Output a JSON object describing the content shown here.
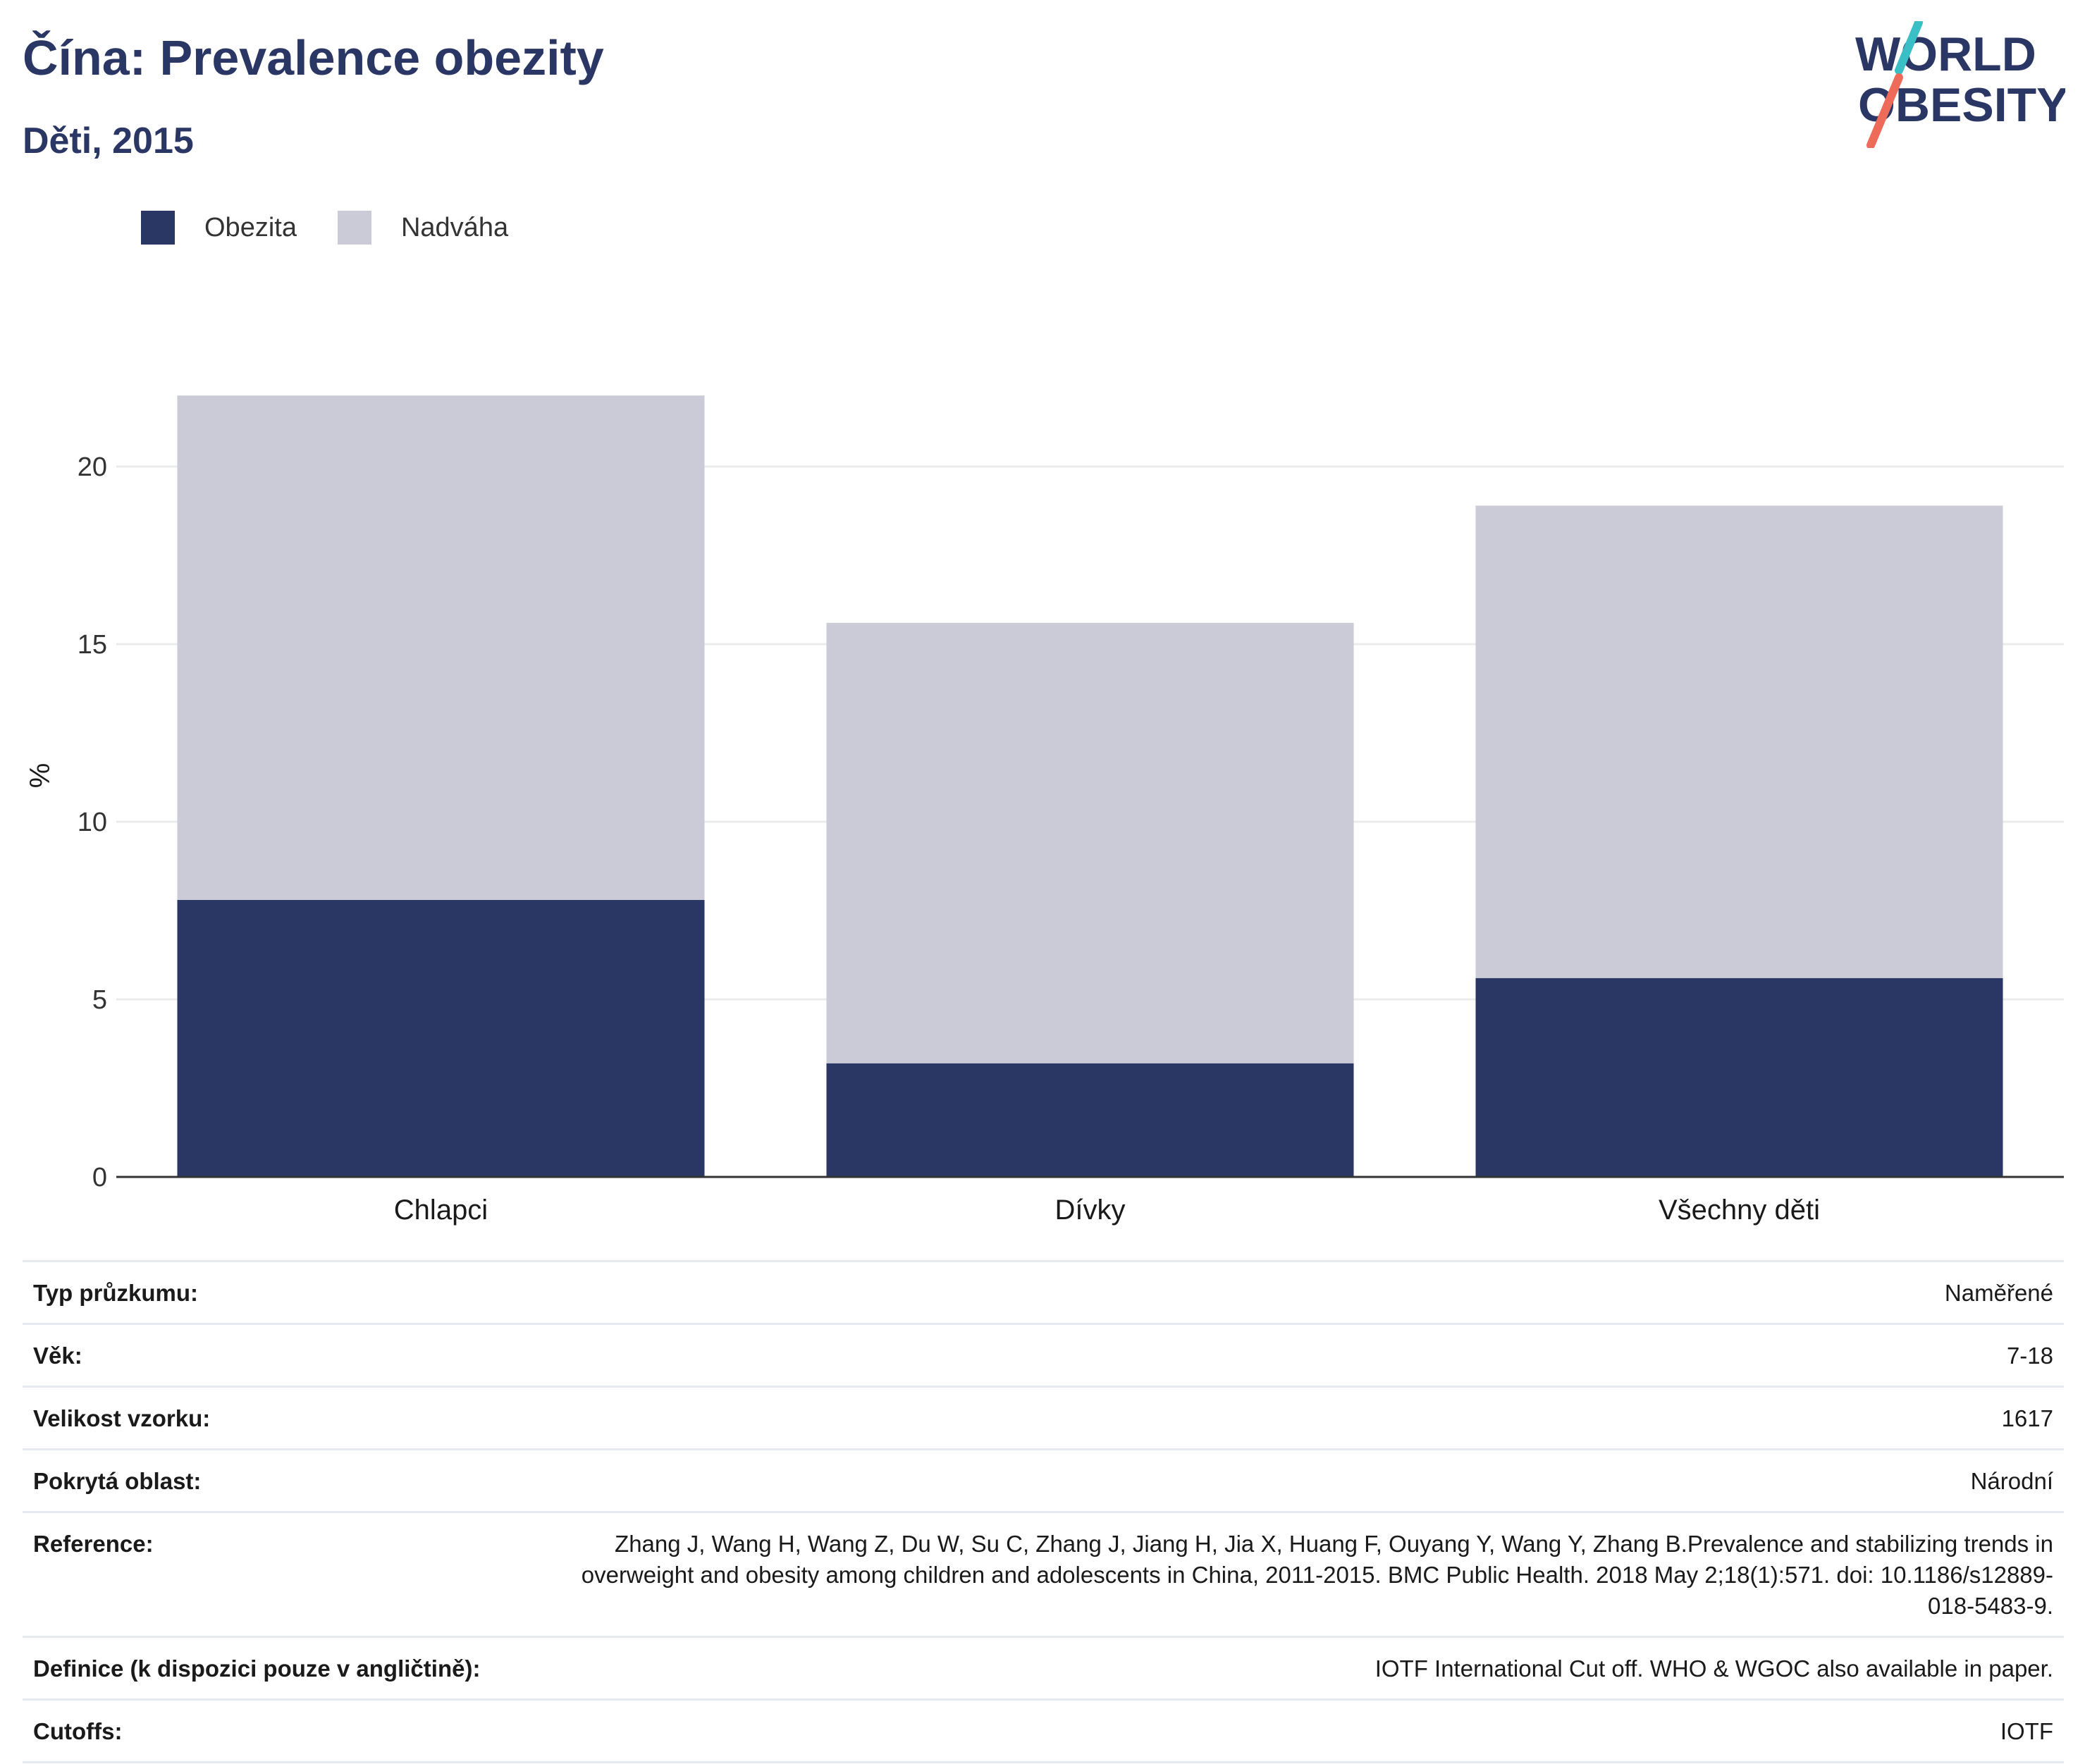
{
  "header": {
    "title": "Čína: Prevalence obezity",
    "subtitle": "Děti, 2015"
  },
  "logo": {
    "line1": "WORLD",
    "line2": "OBESITY",
    "text_color": "#2a3764",
    "slash_top_color": "#3bbfc6",
    "slash_bottom_color": "#ee6b5a"
  },
  "legend": [
    {
      "label": "Obezita",
      "color": "#2a3764"
    },
    {
      "label": "Nadváha",
      "color": "#cacbd7"
    }
  ],
  "chart_data": {
    "type": "bar",
    "stacked": true,
    "categories": [
      "Chlapci",
      "Dívky",
      "Všechny děti"
    ],
    "series": [
      {
        "name": "Obezita",
        "color": "#2a3764",
        "values": [
          7.8,
          3.2,
          5.6
        ]
      },
      {
        "name": "Nadváha",
        "color": "#cacbd7",
        "values": [
          14.2,
          12.4,
          13.3
        ]
      }
    ],
    "totals": [
      22.0,
      15.6,
      18.9
    ],
    "ylabel": "%",
    "xlabel": "",
    "ylim": [
      0,
      22.5
    ],
    "yticks": [
      0,
      5,
      10,
      15,
      20
    ],
    "grid": true,
    "legend_position": "top-left"
  },
  "info": [
    {
      "label": "Typ průzkumu:",
      "value": "Naměřené"
    },
    {
      "label": "Věk:",
      "value": "7-18"
    },
    {
      "label": "Velikost vzorku:",
      "value": "1617"
    },
    {
      "label": "Pokrytá oblast:",
      "value": "Národní"
    },
    {
      "label": "Reference:",
      "value": "Zhang J, Wang H, Wang Z, Du W, Su C, Zhang J, Jiang H, Jia X, Huang F, Ouyang Y, Wang Y, Zhang B.Prevalence and stabilizing trends in overweight and obesity among children and adolescents in China, 2011-2015. BMC Public Health. 2018 May 2;18(1):571. doi: 10.1186/s12889-018-5483-9."
    },
    {
      "label": "Definice (k dispozici pouze v angličtině):",
      "value": "IOTF International Cut off. WHO & WGOC also available in paper."
    },
    {
      "label": "Cutoffs:",
      "value": "IOTF"
    }
  ]
}
